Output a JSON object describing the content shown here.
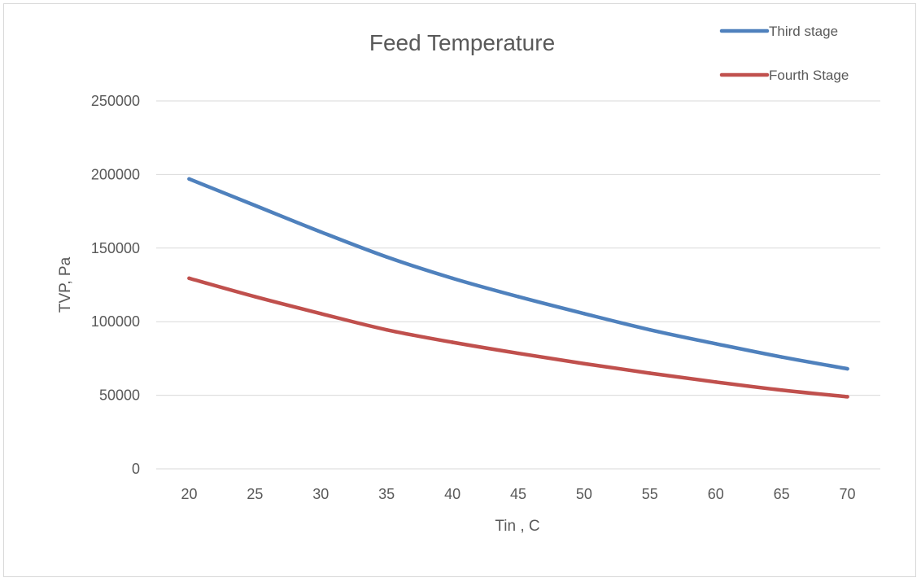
{
  "chart_data": {
    "type": "line",
    "title": "Feed Temperature",
    "xlabel": "Tin , C",
    "ylabel": "TVP, Pa",
    "x": [
      20,
      25,
      30,
      35,
      40,
      45,
      50,
      55,
      60,
      65,
      70
    ],
    "ylim": [
      0,
      250000
    ],
    "yticks": [
      0,
      50000,
      100000,
      150000,
      200000,
      250000
    ],
    "grid": true,
    "legend_position": "top-right",
    "series": [
      {
        "name": "Third stage",
        "color": "#4f81bd",
        "values": [
          197000,
          179000,
          161000,
          144000,
          129500,
          117000,
          105500,
          94500,
          85000,
          76000,
          68000
        ]
      },
      {
        "name": "Fourth Stage",
        "color": "#c0504d",
        "values": [
          129500,
          117000,
          105500,
          94500,
          86000,
          78500,
          71500,
          65000,
          59000,
          53500,
          49000
        ]
      }
    ]
  }
}
